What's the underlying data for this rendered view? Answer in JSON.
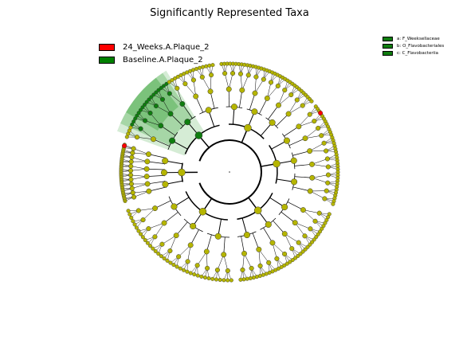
{
  "title": "Significantly Represented Taxa",
  "class_legend": [
    {
      "label": "24_Weeks.A.Plaque_2",
      "color": "#ff0000"
    },
    {
      "label": "Baseline.A.Plaque_2",
      "color": "#008000"
    }
  ],
  "clade_legend": [
    {
      "label": "a: F_Weeksellaceae",
      "color": "#0f7d0f"
    },
    {
      "label": "b: O_Flavobacteriales",
      "color": "#0f7d0f"
    },
    {
      "label": "c: C_Flavobacteriia",
      "color": "#0f7d0f"
    }
  ],
  "colors": {
    "node_default": "#b5b500",
    "node_enriched_baseline": "#0f7d0f",
    "node_enriched_24weeks": "#ff0000",
    "highlight_shade": "#2e9e2e"
  }
}
